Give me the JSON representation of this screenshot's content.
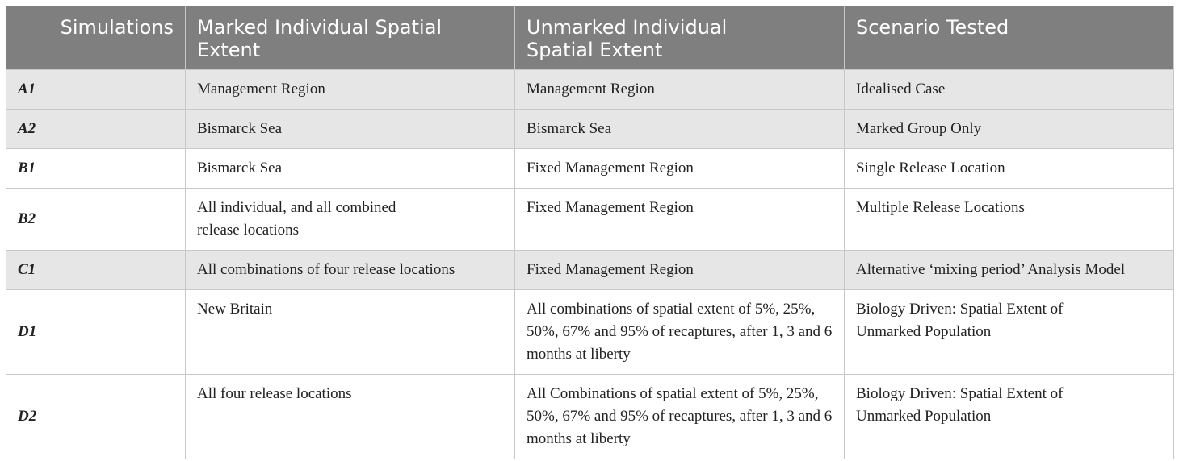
{
  "table": {
    "headers": [
      "Simulations",
      "Marked Individual Spatial Extent",
      "Unmarked Individual Spatial Extent",
      "Scenario Tested"
    ],
    "rows": [
      {
        "simulation": "A1",
        "marked": "Management Region",
        "unmarked": "Management Region",
        "scenario": "Idealised Case"
      },
      {
        "simulation": "A2",
        "marked": "Bismarck Sea",
        "unmarked": "Bismarck Sea",
        "scenario": "Marked Group Only"
      },
      {
        "simulation": "B1",
        "marked": "Bismarck Sea",
        "unmarked": "Fixed Management Region",
        "scenario": "Single Release Location"
      },
      {
        "simulation": "B2",
        "marked": "All individual, and all combined release locations",
        "unmarked": "Fixed Management Region",
        "scenario": "Multiple Release Locations"
      },
      {
        "simulation": "C1",
        "marked": "All combinations of four release locations",
        "unmarked": "Fixed Management Region",
        "scenario": "Alternative ‘mixing period’ Analysis Model"
      },
      {
        "simulation": "D1",
        "marked": "New Britain",
        "unmarked": "All combinations of spatial extent of 5%, 25%, 50%, 67% and 95% of recaptures, after 1, 3 and 6 months at liberty",
        "scenario": "Biology Driven: Spatial Extent of Unmarked Population"
      },
      {
        "simulation": "D2",
        "marked": "All four release locations",
        "unmarked": "All Combinations of spatial extent of 5%, 25%, 50%, 67% and 95% of recaptures, after 1, 3 and 6 months at liberty",
        "scenario": "Biology Driven: Spatial Extent of Unmarked Population"
      }
    ]
  }
}
